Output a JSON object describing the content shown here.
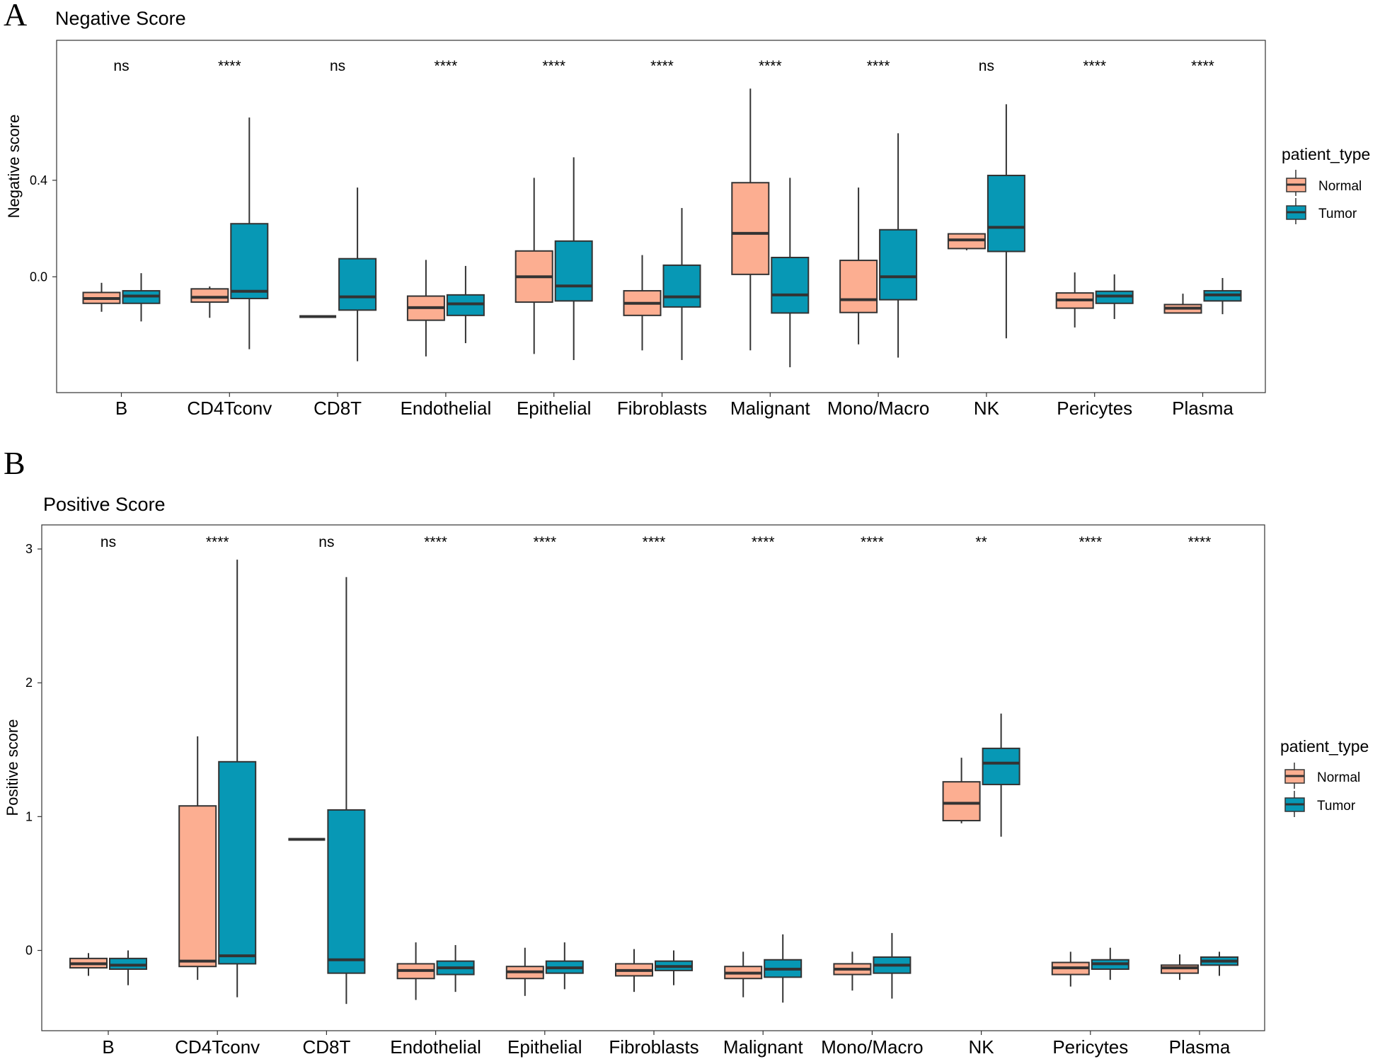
{
  "colors": {
    "normal": "#FCAE91",
    "tumor": "#0798B5",
    "stroke": "#333333"
  },
  "legend": {
    "title": "patient_type",
    "items": [
      "Normal",
      "Tumor"
    ]
  },
  "chart_data": [
    {
      "panel_label": "A",
      "type": "box",
      "title": "Negative Score",
      "xlabel": "",
      "ylabel": "Negative score",
      "ylim": [
        -0.48,
        0.98
      ],
      "yticks": [
        {
          "value": 0.0,
          "label": "0.0"
        },
        {
          "value": 0.4,
          "label": "0.4"
        }
      ],
      "categories": [
        "B",
        "CD4Tconv",
        "CD8T",
        "Endothelial",
        "Epithelial",
        "Fibroblasts",
        "Malignant",
        "Mono/Macro",
        "NK",
        "Pericytes",
        "Plasma"
      ],
      "significance": [
        "ns",
        "****",
        "ns",
        "****",
        "****",
        "****",
        "****",
        "****",
        "ns",
        "****",
        "****"
      ],
      "series": [
        {
          "name": "Normal",
          "boxes": [
            {
              "whislo": -0.145,
              "q1": -0.11,
              "med": -0.09,
              "q3": -0.065,
              "whishi": -0.025
            },
            {
              "whislo": -0.17,
              "q1": -0.105,
              "med": -0.085,
              "q3": -0.05,
              "whishi": -0.04
            },
            {
              "whislo": -0.165,
              "q1": -0.165,
              "med": -0.165,
              "q3": -0.165,
              "whishi": -0.165
            },
            {
              "whislo": -0.33,
              "q1": -0.18,
              "med": -0.128,
              "q3": -0.08,
              "whishi": 0.07
            },
            {
              "whislo": -0.32,
              "q1": -0.105,
              "med": 0.0,
              "q3": 0.107,
              "whishi": 0.41
            },
            {
              "whislo": -0.305,
              "q1": -0.16,
              "med": -0.11,
              "q3": -0.058,
              "whishi": 0.09
            },
            {
              "whislo": -0.305,
              "q1": 0.01,
              "med": 0.18,
              "q3": 0.39,
              "whishi": 0.78
            },
            {
              "whislo": -0.28,
              "q1": -0.148,
              "med": -0.095,
              "q3": 0.068,
              "whishi": 0.37
            },
            {
              "whislo": 0.11,
              "q1": 0.117,
              "med": 0.153,
              "q3": 0.178,
              "whishi": 0.178
            },
            {
              "whislo": -0.21,
              "q1": -0.13,
              "med": -0.096,
              "q3": -0.067,
              "whishi": 0.018
            },
            {
              "whislo": -0.15,
              "q1": -0.15,
              "med": -0.13,
              "q3": -0.115,
              "whishi": -0.07
            }
          ]
        },
        {
          "name": "Tumor",
          "boxes": [
            {
              "whislo": -0.185,
              "q1": -0.11,
              "med": -0.08,
              "q3": -0.058,
              "whishi": 0.015
            },
            {
              "whislo": -0.3,
              "q1": -0.09,
              "med": -0.06,
              "q3": 0.22,
              "whishi": 0.66
            },
            {
              "whislo": -0.35,
              "q1": -0.138,
              "med": -0.083,
              "q3": 0.075,
              "whishi": 0.37
            },
            {
              "whislo": -0.275,
              "q1": -0.16,
              "med": -0.112,
              "q3": -0.075,
              "whishi": 0.045
            },
            {
              "whislo": -0.345,
              "q1": -0.1,
              "med": -0.038,
              "q3": 0.148,
              "whishi": 0.495
            },
            {
              "whislo": -0.345,
              "q1": -0.125,
              "med": -0.083,
              "q3": 0.048,
              "whishi": 0.285
            },
            {
              "whislo": -0.375,
              "q1": -0.15,
              "med": -0.075,
              "q3": 0.08,
              "whishi": 0.41
            },
            {
              "whislo": -0.335,
              "q1": -0.095,
              "med": 0.0,
              "q3": 0.195,
              "whishi": 0.595
            },
            {
              "whislo": -0.255,
              "q1": 0.105,
              "med": 0.205,
              "q3": 0.42,
              "whishi": 0.715
            },
            {
              "whislo": -0.175,
              "q1": -0.11,
              "med": -0.08,
              "q3": -0.06,
              "whishi": 0.01
            },
            {
              "whislo": -0.155,
              "q1": -0.1,
              "med": -0.075,
              "q3": -0.058,
              "whishi": -0.005
            }
          ]
        }
      ]
    },
    {
      "panel_label": "B",
      "type": "box",
      "title": "Positive Score",
      "xlabel": "",
      "ylabel": "Positive score",
      "ylim": [
        -0.6,
        3.18
      ],
      "yticks": [
        {
          "value": 0,
          "label": "0"
        },
        {
          "value": 1,
          "label": "1"
        },
        {
          "value": 2,
          "label": "2"
        },
        {
          "value": 3,
          "label": "3"
        }
      ],
      "categories": [
        "B",
        "CD4Tconv",
        "CD8T",
        "Endothelial",
        "Epithelial",
        "Fibroblasts",
        "Malignant",
        "Mono/Macro",
        "NK",
        "Pericytes",
        "Plasma"
      ],
      "significance": [
        "ns",
        "****",
        "ns",
        "****",
        "****",
        "****",
        "****",
        "****",
        "**",
        "****",
        "****"
      ],
      "series": [
        {
          "name": "Normal",
          "boxes": [
            {
              "whislo": -0.19,
              "q1": -0.13,
              "med": -0.1,
              "q3": -0.06,
              "whishi": -0.02
            },
            {
              "whislo": -0.22,
              "q1": -0.12,
              "med": -0.08,
              "q3": 1.08,
              "whishi": 1.6
            },
            {
              "whislo": 0.83,
              "q1": 0.83,
              "med": 0.83,
              "q3": 0.83,
              "whishi": 0.83
            },
            {
              "whislo": -0.37,
              "q1": -0.21,
              "med": -0.15,
              "q3": -0.1,
              "whishi": 0.06
            },
            {
              "whislo": -0.34,
              "q1": -0.21,
              "med": -0.16,
              "q3": -0.12,
              "whishi": 0.02
            },
            {
              "whislo": -0.31,
              "q1": -0.19,
              "med": -0.15,
              "q3": -0.1,
              "whishi": 0.01
            },
            {
              "whislo": -0.35,
              "q1": -0.21,
              "med": -0.17,
              "q3": -0.12,
              "whishi": -0.01
            },
            {
              "whislo": -0.3,
              "q1": -0.18,
              "med": -0.14,
              "q3": -0.1,
              "whishi": -0.01
            },
            {
              "whislo": 0.95,
              "q1": 0.97,
              "med": 1.1,
              "q3": 1.26,
              "whishi": 1.44
            },
            {
              "whislo": -0.27,
              "q1": -0.18,
              "med": -0.13,
              "q3": -0.09,
              "whishi": -0.01
            },
            {
              "whislo": -0.22,
              "q1": -0.17,
              "med": -0.13,
              "q3": -0.11,
              "whishi": -0.03
            }
          ]
        },
        {
          "name": "Tumor",
          "boxes": [
            {
              "whislo": -0.26,
              "q1": -0.14,
              "med": -0.11,
              "q3": -0.06,
              "whishi": 0.0
            },
            {
              "whislo": -0.35,
              "q1": -0.1,
              "med": -0.04,
              "q3": 1.41,
              "whishi": 2.92
            },
            {
              "whislo": -0.4,
              "q1": -0.17,
              "med": -0.07,
              "q3": 1.05,
              "whishi": 2.79
            },
            {
              "whislo": -0.31,
              "q1": -0.18,
              "med": -0.13,
              "q3": -0.08,
              "whishi": 0.04
            },
            {
              "whislo": -0.29,
              "q1": -0.17,
              "med": -0.13,
              "q3": -0.08,
              "whishi": 0.06
            },
            {
              "whislo": -0.26,
              "q1": -0.15,
              "med": -0.12,
              "q3": -0.08,
              "whishi": 0.0
            },
            {
              "whislo": -0.39,
              "q1": -0.2,
              "med": -0.14,
              "q3": -0.07,
              "whishi": 0.12
            },
            {
              "whislo": -0.36,
              "q1": -0.17,
              "med": -0.11,
              "q3": -0.05,
              "whishi": 0.13
            },
            {
              "whislo": 0.85,
              "q1": 1.24,
              "med": 1.4,
              "q3": 1.51,
              "whishi": 1.77
            },
            {
              "whislo": -0.22,
              "q1": -0.14,
              "med": -0.1,
              "q3": -0.07,
              "whishi": 0.02
            },
            {
              "whislo": -0.19,
              "q1": -0.11,
              "med": -0.08,
              "q3": -0.05,
              "whishi": -0.01
            }
          ]
        }
      ]
    }
  ]
}
